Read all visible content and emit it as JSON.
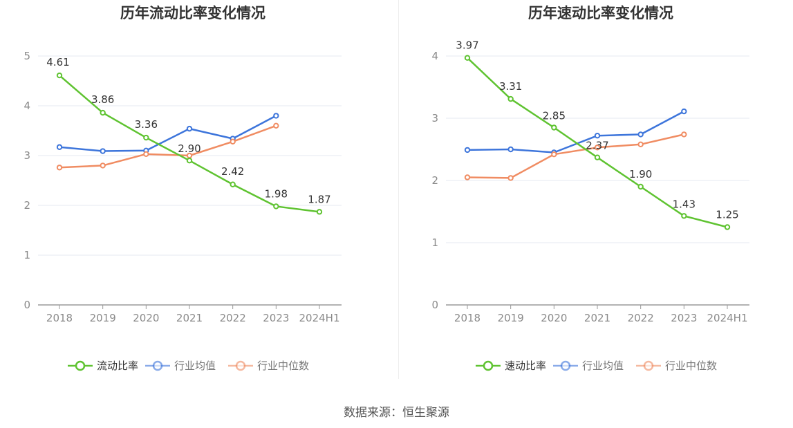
{
  "colors": {
    "main": "#5fc331",
    "avg": "#3d75db",
    "median": "#f08c62",
    "grid": "#e4e8f2",
    "axis": "#999999",
    "text": "#333333",
    "tick": "#8a8a8a"
  },
  "source": "数据来源：恒生聚源",
  "chart_data": [
    {
      "type": "line",
      "title": "历年流动比率变化情况",
      "categories": [
        "2018",
        "2019",
        "2020",
        "2021",
        "2022",
        "2023",
        "2024H1"
      ],
      "yticks": [
        "0",
        "1",
        "2",
        "3",
        "4",
        "5"
      ],
      "ylim": [
        0,
        5
      ],
      "grid": true,
      "legend_position": "bottom",
      "series": [
        {
          "name": "流动比率",
          "values": [
            4.61,
            3.86,
            3.36,
            2.9,
            2.42,
            1.98,
            1.87
          ],
          "labels": [
            "4.61",
            "3.86",
            "3.36",
            "2.90",
            "2.42",
            "1.98",
            "1.87"
          ],
          "color": "#5fc331"
        },
        {
          "name": "行业均值",
          "values": [
            3.17,
            3.09,
            3.1,
            3.54,
            3.34,
            3.8,
            null
          ],
          "color": "#3d75db"
        },
        {
          "name": "行业中位数",
          "values": [
            2.76,
            2.8,
            3.03,
            3.0,
            3.28,
            3.6,
            null
          ],
          "color": "#f08c62"
        }
      ]
    },
    {
      "type": "line",
      "title": "历年速动比率变化情况",
      "categories": [
        "2018",
        "2019",
        "2020",
        "2021",
        "2022",
        "2023",
        "2024H1"
      ],
      "yticks": [
        "0",
        "1",
        "2",
        "3",
        "4"
      ],
      "ylim": [
        0,
        4
      ],
      "grid": true,
      "legend_position": "bottom",
      "series": [
        {
          "name": "速动比率",
          "values": [
            3.97,
            3.31,
            2.85,
            2.37,
            1.9,
            1.43,
            1.25
          ],
          "labels": [
            "3.97",
            "3.31",
            "2.85",
            "2.37",
            "1.90",
            "1.43",
            "1.25"
          ],
          "color": "#5fc331"
        },
        {
          "name": "行业均值",
          "values": [
            2.49,
            2.5,
            2.45,
            2.72,
            2.74,
            3.11,
            null
          ],
          "color": "#3d75db"
        },
        {
          "name": "行业中位数",
          "values": [
            2.05,
            2.04,
            2.42,
            2.53,
            2.58,
            2.74,
            null
          ],
          "color": "#f08c62"
        }
      ]
    }
  ]
}
